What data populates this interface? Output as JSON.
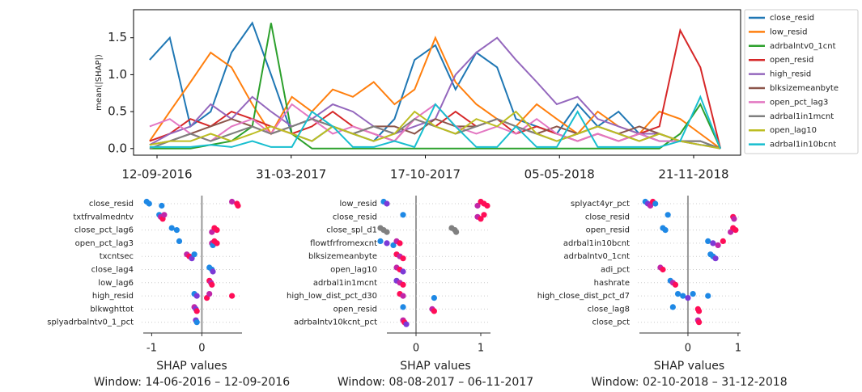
{
  "chart_data": [
    {
      "type": "line",
      "ylabel": "mean(|SHAP|)",
      "x": [
        "01-09-2016",
        "01-10-2016",
        "01-11-2016",
        "01-12-2016",
        "01-01-2017",
        "01-02-2017",
        "01-03-2017",
        "01-04-2017",
        "01-05-2017",
        "01-06-2017",
        "01-07-2017",
        "01-08-2017",
        "01-09-2017",
        "01-10-2017",
        "01-11-2017",
        "01-12-2017",
        "01-01-2018",
        "01-02-2018",
        "01-03-2018",
        "01-04-2018",
        "01-05-2018",
        "01-06-2018",
        "01-07-2018",
        "01-08-2018",
        "01-09-2018",
        "01-10-2018",
        "01-11-2018",
        "01-12-2018",
        "31-12-2018"
      ],
      "xlim": [
        "08-08-2016",
        "30-01-2019"
      ],
      "xticks": [
        "12-09-2016",
        "31-03-2017",
        "17-10-2017",
        "05-05-2018",
        "21-11-2018"
      ],
      "ylim": [
        -0.09,
        1.88
      ],
      "yticks": [
        {
          "value": 0,
          "label": "0.0"
        },
        0.5,
        {
          "value": 1,
          "label": "1.0"
        },
        1.5
      ],
      "series": [
        {
          "name": "close_resid",
          "color": "#1f77b4",
          "values": [
            1.2,
            1.5,
            0.3,
            0.5,
            1.3,
            1.7,
            1.0,
            0.2,
            0.1,
            0.3,
            0.2,
            0.1,
            0.4,
            1.2,
            1.4,
            0.8,
            1.3,
            1.1,
            0.4,
            0.3,
            0.2,
            0.6,
            0.3,
            0.5,
            0.2,
            0.1,
            0.1,
            0.05,
            0.02
          ]
        },
        {
          "name": "low_resid",
          "color": "#ff7f0e",
          "values": [
            0.1,
            0.5,
            0.9,
            1.3,
            1.1,
            0.6,
            0.2,
            0.7,
            0.5,
            0.8,
            0.7,
            0.9,
            0.6,
            0.8,
            1.5,
            0.9,
            0.6,
            0.4,
            0.3,
            0.6,
            0.4,
            0.2,
            0.5,
            0.3,
            0.2,
            0.5,
            0.4,
            0.2,
            0
          ]
        },
        {
          "name": "adrbalntv0_1cnt",
          "color": "#2ca02c",
          "values": [
            0,
            0,
            0,
            0.05,
            0.1,
            0.3,
            1.7,
            0.2,
            0,
            0,
            0,
            0,
            0,
            0,
            0,
            0,
            0,
            0,
            0,
            0,
            0,
            0,
            0,
            0,
            0,
            0,
            0.2,
            0.6,
            0
          ]
        },
        {
          "name": "open_resid",
          "color": "#d62728",
          "values": [
            0.1,
            0.2,
            0.4,
            0.3,
            0.5,
            0.4,
            0.3,
            0.2,
            0.3,
            0.5,
            0.3,
            0.2,
            0.1,
            0.4,
            0.3,
            0.5,
            0.3,
            0.4,
            0.2,
            0.3,
            0.2,
            0.1,
            0.2,
            0.1,
            0.2,
            0.3,
            1.6,
            1.1,
            0
          ]
        },
        {
          "name": "high_resid",
          "color": "#9467bd",
          "values": [
            0.05,
            0.2,
            0.3,
            0.6,
            0.4,
            0.7,
            0.5,
            0.3,
            0.4,
            0.6,
            0.5,
            0.3,
            0.2,
            0.3,
            0.4,
            1.0,
            1.3,
            1.5,
            1.2,
            0.9,
            0.6,
            0.7,
            0.4,
            0.3,
            0.2,
            0.2,
            0.1,
            0.1,
            0
          ]
        },
        {
          "name": "blksizemeanbyte",
          "color": "#8c564b",
          "values": [
            0.05,
            0.1,
            0.2,
            0.3,
            0.4,
            0.3,
            0.2,
            0.3,
            0.4,
            0.3,
            0.2,
            0.3,
            0.3,
            0.2,
            0.4,
            0.3,
            0.3,
            0.4,
            0.3,
            0.2,
            0.3,
            0.2,
            0.3,
            0.2,
            0.3,
            0.2,
            0.1,
            0.1,
            0
          ]
        },
        {
          "name": "open_pct_lag3",
          "color": "#e377c2",
          "values": [
            0.3,
            0.4,
            0.2,
            0.1,
            0.3,
            0.4,
            0.2,
            0.6,
            0.4,
            0.2,
            0.3,
            0.2,
            0.1,
            0.4,
            0.6,
            0.3,
            0.2,
            0.3,
            0.2,
            0.4,
            0.2,
            0.1,
            0.2,
            0.1,
            0.2,
            0.1,
            0.1,
            0.05,
            0
          ]
        },
        {
          "name": "adrbal1in1mcnt",
          "color": "#7f7f7f",
          "values": [
            0,
            0.1,
            0.2,
            0.1,
            0.2,
            0.3,
            0.2,
            0.3,
            0.4,
            0.3,
            0.2,
            0.3,
            0.2,
            0.4,
            0.3,
            0.2,
            0.3,
            0.4,
            0.3,
            0.2,
            0.1,
            0.2,
            0.3,
            0.2,
            0.1,
            0.2,
            0.1,
            0.1,
            0
          ]
        },
        {
          "name": "open_lag10",
          "color": "#bcbd22",
          "values": [
            0.05,
            0.1,
            0.1,
            0.2,
            0.1,
            0.2,
            0.3,
            0.2,
            0.1,
            0.3,
            0.2,
            0.1,
            0.2,
            0.5,
            0.3,
            0.2,
            0.4,
            0.3,
            0.5,
            0.2,
            0.1,
            0.2,
            0.3,
            0.2,
            0.1,
            0.2,
            0.1,
            0.05,
            0
          ]
        },
        {
          "name": "adrbal1in10bcnt",
          "color": "#17becf",
          "values": [
            0.02,
            0.02,
            0.02,
            0.05,
            0.02,
            0.1,
            0.02,
            0.02,
            0.5,
            0.3,
            0.02,
            0.02,
            0.1,
            0.02,
            0.6,
            0.3,
            0.02,
            0.02,
            0.3,
            0.02,
            0.02,
            0.5,
            0.02,
            0.02,
            0.02,
            0.02,
            0.1,
            0.7,
            0
          ]
        }
      ]
    },
    {
      "type": "beeswarm",
      "xlabel": "SHAP values",
      "window": "Window: 14-06-2016 – 12-09-2016",
      "xlim": [
        -1.2,
        0.8
      ],
      "xticks": [
        -1,
        0
      ],
      "features": [
        {
          "name": "close_resid",
          "values": [
            -1.1,
            -1.05,
            -0.8,
            0.6,
            0.7,
            0.72
          ],
          "colors": [
            "#1e88e5",
            "#1e88e5",
            "#1e88e5",
            "#c026a8",
            "#ff0d57",
            "#ff0d57"
          ]
        },
        {
          "name": "txtfrvalmedntv",
          "values": [
            -0.85,
            -0.82,
            -0.78,
            -0.75
          ],
          "colors": [
            "#1e88e5",
            "#c026a8",
            "#ff0d57",
            "#c026a8"
          ]
        },
        {
          "name": "close_pct_lag6",
          "values": [
            -0.6,
            -0.5,
            0.2,
            0.25,
            0.3
          ],
          "colors": [
            "#1e88e5",
            "#1e88e5",
            "#c026a8",
            "#ff0d57",
            "#ff0d57"
          ]
        },
        {
          "name": "open_pct_lag3",
          "values": [
            -0.45,
            0.2,
            0.22,
            0.25,
            0.3
          ],
          "colors": [
            "#1e88e5",
            "#c026a8",
            "#1e88e5",
            "#ff0d57",
            "#ff0d57"
          ]
        },
        {
          "name": "txcntsec",
          "values": [
            -0.3,
            -0.25,
            -0.2,
            -0.15
          ],
          "colors": [
            "#c026a8",
            "#ff0d57",
            "#7c3ad6",
            "#1e88e5"
          ]
        },
        {
          "name": "close_lag4",
          "values": [
            0.15,
            0.2,
            0.22
          ],
          "colors": [
            "#1e88e5",
            "#1e88e5",
            "#7c3ad6"
          ]
        },
        {
          "name": "low_lag6",
          "values": [
            0.15,
            0.18,
            0.2
          ],
          "colors": [
            "#ff0d57",
            "#c026a8",
            "#ff0d57"
          ]
        },
        {
          "name": "high_resid",
          "values": [
            -0.15,
            -0.1,
            0.1,
            0.15,
            0.6
          ],
          "colors": [
            "#1e88e5",
            "#7c3ad6",
            "#ff0d57",
            "#c026a8",
            "#ff0d57"
          ]
        },
        {
          "name": "blkwghttot",
          "values": [
            -0.15,
            -0.12,
            -0.1
          ],
          "colors": [
            "#c026a8",
            "#7c3ad6",
            "#ff0d57"
          ]
        },
        {
          "name": "splyadrbalntv0_1_pct",
          "values": [
            -0.12,
            -0.1
          ],
          "colors": [
            "#7c3ad6",
            "#1e88e5"
          ]
        }
      ]
    },
    {
      "type": "beeswarm",
      "xlabel": "SHAP values",
      "window": "Window: 08-08-2017 – 06-11-2017",
      "xlim": [
        -0.55,
        1.15
      ],
      "xticks": [
        0,
        1
      ],
      "features": [
        {
          "name": "low_resid",
          "values": [
            -0.5,
            -0.45,
            0.95,
            1.0,
            1.05,
            1.1
          ],
          "colors": [
            "#1e88e5",
            "#7c3ad6",
            "#c026a8",
            "#ff0d57",
            "#ff0d57",
            "#ff0d57"
          ]
        },
        {
          "name": "close_resid",
          "values": [
            -0.2,
            0.95,
            1.0,
            1.05
          ],
          "colors": [
            "#1e88e5",
            "#c026a8",
            "#ff0d57",
            "#ff0d57"
          ]
        },
        {
          "name": "close_spl_d1",
          "values": [
            -0.55,
            -0.5,
            -0.45,
            0.55,
            0.6,
            0.62
          ],
          "colors": [
            "#808080",
            "#808080",
            "#808080",
            "#808080",
            "#808080",
            "#808080"
          ]
        },
        {
          "name": "flowtfrfromexcnt",
          "values": [
            -0.55,
            -0.45,
            -0.35,
            -0.3,
            -0.25
          ],
          "colors": [
            "#1e88e5",
            "#7c3ad6",
            "#1e88e5",
            "#c026a8",
            "#ff0d57"
          ]
        },
        {
          "name": "blksizemeanbyte",
          "values": [
            -0.3,
            -0.25,
            -0.2
          ],
          "colors": [
            "#ff0d57",
            "#c026a8",
            "#ff0d57"
          ]
        },
        {
          "name": "open_lag10",
          "values": [
            -0.3,
            -0.25,
            -0.2
          ],
          "colors": [
            "#c026a8",
            "#ff0d57",
            "#7c3ad6"
          ]
        },
        {
          "name": "adrbal1in1mcnt",
          "values": [
            -0.3,
            -0.25,
            -0.2
          ],
          "colors": [
            "#7c3ad6",
            "#c026a8",
            "#ff0d57"
          ]
        },
        {
          "name": "high_low_dist_pct_d30",
          "values": [
            -0.25,
            -0.2,
            0.28
          ],
          "colors": [
            "#ff0d57",
            "#c026a8",
            "#1e88e5"
          ]
        },
        {
          "name": "open_resid",
          "values": [
            -0.2,
            0.25,
            0.28
          ],
          "colors": [
            "#1e88e5",
            "#c026a8",
            "#ff0d57"
          ]
        },
        {
          "name": "adrbalntv10kcnt_pct",
          "values": [
            -0.2,
            -0.18,
            -0.15
          ],
          "colors": [
            "#c026a8",
            "#ff0d57",
            "#7c3ad6"
          ]
        }
      ]
    },
    {
      "type": "beeswarm",
      "xlabel": "SHAP values",
      "window": "Window: 02-10-2018 – 31-12-2018",
      "xlim": [
        -1,
        1.05
      ],
      "xticks": [
        0,
        1
      ],
      "features": [
        {
          "name": "splyact4yr_pct",
          "values": [
            -0.85,
            -0.8,
            -0.75,
            -0.7,
            -0.65
          ],
          "colors": [
            "#1e88e5",
            "#7c3ad6",
            "#c026a8",
            "#ff0d57",
            "#1e88e5"
          ]
        },
        {
          "name": "close_resid",
          "values": [
            -0.4,
            0.9,
            0.92
          ],
          "colors": [
            "#1e88e5",
            "#ff0d57",
            "#c026a8"
          ]
        },
        {
          "name": "open_resid",
          "values": [
            -0.5,
            -0.45,
            0.85,
            0.9,
            0.95
          ],
          "colors": [
            "#1e88e5",
            "#1e88e5",
            "#c026a8",
            "#ff0d57",
            "#ff0d57"
          ]
        },
        {
          "name": "adrbal1in10bcnt",
          "values": [
            0.4,
            0.5,
            0.6,
            0.7
          ],
          "colors": [
            "#1e88e5",
            "#7c3ad6",
            "#c026a8",
            "#ff0d57"
          ]
        },
        {
          "name": "adrbalntv0_1cnt",
          "values": [
            0.45,
            0.5,
            0.55
          ],
          "colors": [
            "#1e88e5",
            "#1e88e5",
            "#7c3ad6"
          ]
        },
        {
          "name": "adi_pct",
          "values": [
            -0.55,
            -0.5
          ],
          "colors": [
            "#c026a8",
            "#ff0d57"
          ]
        },
        {
          "name": "hashrate",
          "values": [
            -0.35,
            -0.3,
            -0.25
          ],
          "colors": [
            "#1e88e5",
            "#c026a8",
            "#ff0d57"
          ]
        },
        {
          "name": "high_close_dist_pct_d7",
          "values": [
            -0.2,
            -0.1,
            0,
            0.1,
            0.4
          ],
          "colors": [
            "#1e88e5",
            "#1e88e5",
            "#7c3ad6",
            "#1e88e5",
            "#1e88e5"
          ]
        },
        {
          "name": "close_lag8",
          "values": [
            -0.3,
            0.2,
            0.22
          ],
          "colors": [
            "#1e88e5",
            "#ff0d57",
            "#ff0d57"
          ]
        },
        {
          "name": "close_pct",
          "values": [
            0.2,
            0.22
          ],
          "colors": [
            "#c026a8",
            "#ff0d57"
          ]
        }
      ]
    }
  ]
}
